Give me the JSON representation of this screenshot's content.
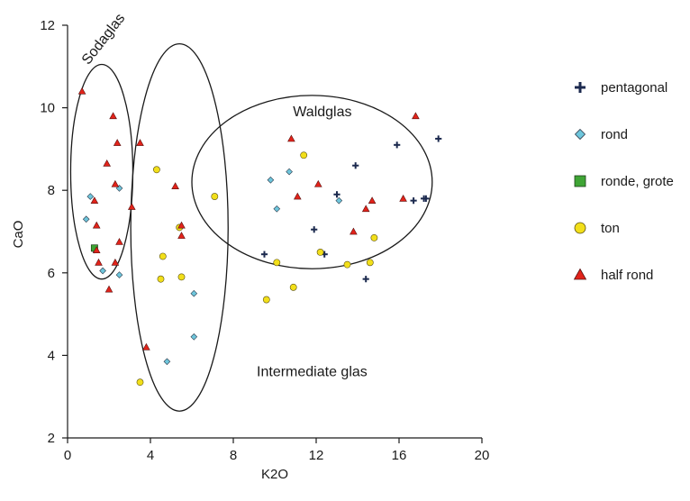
{
  "chart_data": {
    "type": "scatter",
    "title": "",
    "xlabel": "K2O",
    "ylabel": "CaO",
    "xlim": [
      0,
      20
    ],
    "ylim": [
      2,
      12
    ],
    "xticks": [
      0,
      4,
      8,
      12,
      16,
      20
    ],
    "yticks": [
      2,
      4,
      6,
      8,
      10,
      12
    ],
    "grid": false,
    "legend_position": "right",
    "annotations": [
      {
        "text": "Sodaglas",
        "x": 1.9,
        "y": 11.6,
        "rotation": -52
      },
      {
        "text": "Waldglas",
        "x": 12.3,
        "y": 9.8
      },
      {
        "text": "Intermediate glas",
        "x": 11.8,
        "y": 3.5
      }
    ],
    "ellipses": [
      {
        "cx": 1.65,
        "cy": 8.45,
        "rx": 1.5,
        "ry": 2.6
      },
      {
        "cx": 5.4,
        "cy": 7.1,
        "rx": 2.35,
        "ry": 4.45
      },
      {
        "cx": 11.8,
        "cy": 8.2,
        "rx": 5.8,
        "ry": 2.1
      }
    ],
    "series": [
      {
        "name": "pentagonal",
        "marker": "cross",
        "color": "#1c2a4f",
        "points": [
          [
            15.9,
            9.1
          ],
          [
            17.9,
            9.25
          ],
          [
            13.9,
            8.6
          ],
          [
            13.0,
            7.9
          ],
          [
            16.7,
            7.75
          ],
          [
            17.2,
            7.8
          ],
          [
            17.3,
            7.8
          ],
          [
            11.9,
            7.05
          ],
          [
            12.4,
            6.45
          ],
          [
            9.5,
            6.45
          ],
          [
            14.4,
            5.85
          ]
        ]
      },
      {
        "name": "rond",
        "marker": "diamond",
        "color": "#6ec6dc",
        "points": [
          [
            10.7,
            8.45
          ],
          [
            9.8,
            8.25
          ],
          [
            13.1,
            7.75
          ],
          [
            10.1,
            7.55
          ],
          [
            1.1,
            7.85
          ],
          [
            1.3,
            6.55
          ],
          [
            0.9,
            7.3
          ],
          [
            1.7,
            6.05
          ],
          [
            2.5,
            8.05
          ],
          [
            2.5,
            5.95
          ],
          [
            6.1,
            5.5
          ],
          [
            6.1,
            4.45
          ],
          [
            4.8,
            3.85
          ]
        ]
      },
      {
        "name": "ronde, grote",
        "marker": "square",
        "color": "#3fa535",
        "points": [
          [
            1.3,
            6.6
          ]
        ]
      },
      {
        "name": "ton",
        "marker": "circle",
        "color": "#f2df1a",
        "points": [
          [
            4.3,
            8.5
          ],
          [
            11.4,
            8.85
          ],
          [
            7.1,
            7.85
          ],
          [
            5.4,
            7.1
          ],
          [
            4.6,
            6.4
          ],
          [
            10.1,
            6.25
          ],
          [
            12.2,
            6.5
          ],
          [
            13.5,
            6.2
          ],
          [
            14.6,
            6.25
          ],
          [
            14.8,
            6.85
          ],
          [
            4.5,
            5.85
          ],
          [
            5.5,
            5.9
          ],
          [
            10.9,
            5.65
          ],
          [
            9.6,
            5.35
          ],
          [
            3.5,
            3.35
          ]
        ]
      },
      {
        "name": "half rond",
        "marker": "triangle",
        "color": "#e2231a",
        "points": [
          [
            0.7,
            10.4
          ],
          [
            2.2,
            9.8
          ],
          [
            16.8,
            9.8
          ],
          [
            2.4,
            9.15
          ],
          [
            3.5,
            9.15
          ],
          [
            10.8,
            9.25
          ],
          [
            1.9,
            8.65
          ],
          [
            2.3,
            8.15
          ],
          [
            5.2,
            8.1
          ],
          [
            12.1,
            8.15
          ],
          [
            11.1,
            7.85
          ],
          [
            1.3,
            7.75
          ],
          [
            3.1,
            7.6
          ],
          [
            14.7,
            7.75
          ],
          [
            16.2,
            7.8
          ],
          [
            1.4,
            7.15
          ],
          [
            5.5,
            7.15
          ],
          [
            14.4,
            7.55
          ],
          [
            13.8,
            7.0
          ],
          [
            2.5,
            6.75
          ],
          [
            5.5,
            6.9
          ],
          [
            1.4,
            6.55
          ],
          [
            1.5,
            6.25
          ],
          [
            2.3,
            6.25
          ],
          [
            2.0,
            5.6
          ],
          [
            3.8,
            4.2
          ]
        ]
      }
    ]
  }
}
